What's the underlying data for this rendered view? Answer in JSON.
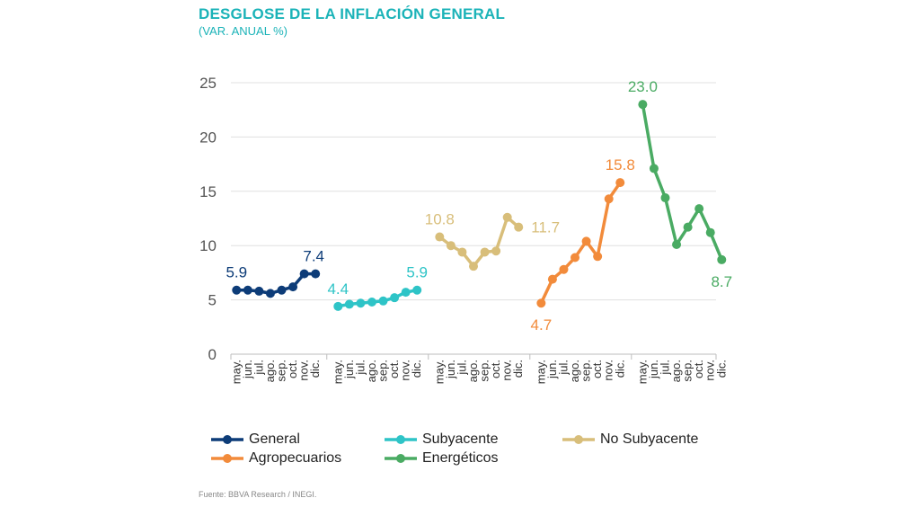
{
  "title": "DESGLOSE DE LA INFLACIÓN GENERAL",
  "subtitle": "(VAR. ANUAL %)",
  "source": "Fuente: BBVA Research / INEGI.",
  "chart_data": {
    "type": "line",
    "ylim": [
      0,
      25
    ],
    "yticks": [
      0,
      5,
      10,
      15,
      20,
      25
    ],
    "grid": true,
    "legend_position": "bottom",
    "series": [
      {
        "name": "General",
        "color": "#0d3c78",
        "categories": [
          "may.",
          "jun.",
          "jul.",
          "ago.",
          "sep.",
          "oct.",
          "nov.",
          "dic."
        ],
        "values": [
          5.9,
          5.9,
          5.8,
          5.6,
          5.9,
          6.2,
          7.4,
          7.4
        ],
        "labels": [
          {
            "index": 0,
            "text": "5.9",
            "pos": "above"
          },
          {
            "index": 7,
            "text": "7.4",
            "pos": "above-left"
          }
        ]
      },
      {
        "name": "Subyacente",
        "color": "#2ec4c7",
        "categories": [
          "may.",
          "jun.",
          "jul.",
          "ago.",
          "sep.",
          "oct.",
          "nov.",
          "dic."
        ],
        "values": [
          4.4,
          4.6,
          4.7,
          4.8,
          4.9,
          5.2,
          5.7,
          5.9
        ],
        "labels": [
          {
            "index": 0,
            "text": "4.4",
            "pos": "above"
          },
          {
            "index": 7,
            "text": "5.9",
            "pos": "above"
          }
        ]
      },
      {
        "name": "No Subyacente",
        "color": "#d8be7a",
        "categories": [
          "may.",
          "jun.",
          "jul.",
          "ago.",
          "sep.",
          "oct.",
          "nov.",
          "dic."
        ],
        "values": [
          10.8,
          10.0,
          9.4,
          8.1,
          9.4,
          9.5,
          12.6,
          11.7
        ],
        "labels": [
          {
            "index": 0,
            "text": "10.8",
            "pos": "above"
          },
          {
            "index": 7,
            "text": "11.7",
            "pos": "right"
          }
        ]
      },
      {
        "name": "Agropecuarios",
        "color": "#f28b3b",
        "categories": [
          "may.",
          "jun.",
          "jul.",
          "ago.",
          "sep.",
          "oct.",
          "nov.",
          "dic."
        ],
        "values": [
          4.7,
          6.9,
          7.8,
          8.9,
          10.4,
          9.0,
          14.3,
          15.8
        ],
        "labels": [
          {
            "index": 0,
            "text": "4.7",
            "pos": "below"
          },
          {
            "index": 7,
            "text": "15.8",
            "pos": "above"
          }
        ]
      },
      {
        "name": "Energéticos",
        "color": "#4aab63",
        "categories": [
          "may.",
          "jun.",
          "jul.",
          "ago.",
          "sep.",
          "oct.",
          "nov.",
          "dic."
        ],
        "values": [
          23.0,
          17.1,
          14.4,
          10.1,
          11.7,
          13.4,
          11.2,
          8.7
        ],
        "labels": [
          {
            "index": 0,
            "text": "23.0",
            "pos": "above"
          },
          {
            "index": 7,
            "text": "8.7",
            "pos": "below"
          }
        ]
      }
    ]
  }
}
